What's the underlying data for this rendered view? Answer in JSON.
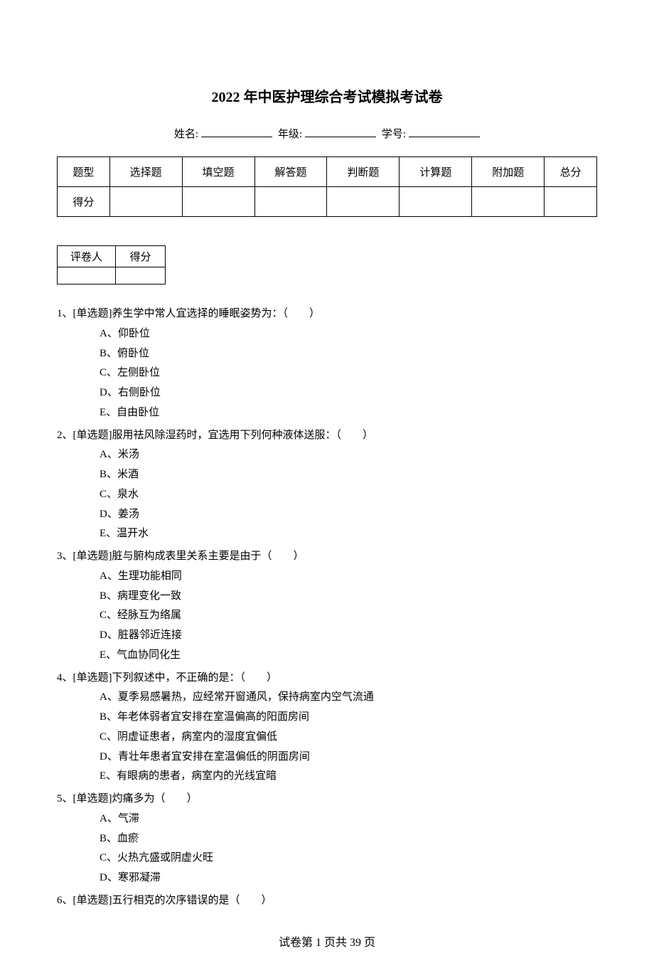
{
  "title": "2022 年中医护理综合考试模拟考试卷",
  "info_labels": {
    "name": "姓名:",
    "grade": "年级:",
    "id": "学号:"
  },
  "score_table": {
    "headers": [
      "题型",
      "选择题",
      "填空题",
      "解答题",
      "判断题",
      "计算题",
      "附加题",
      "总分"
    ],
    "row_label": "得分"
  },
  "grader_table": {
    "col1": "评卷人",
    "col2": "得分"
  },
  "questions": [
    {
      "num": "1、",
      "type": "[单选题]",
      "stem": "养生学中常人宜选择的睡眠姿势为：（　　）",
      "options": [
        "A、仰卧位",
        "B、俯卧位",
        "C、左侧卧位",
        "D、右侧卧位",
        "E、自由卧位"
      ]
    },
    {
      "num": "2、",
      "type": "[单选题]",
      "stem": "服用祛风除湿药时，宜选用下列何种液体送服：（　　）",
      "options": [
        "A、米汤",
        "B、米酒",
        "C、泉水",
        "D、姜汤",
        "E、温开水"
      ]
    },
    {
      "num": "3、",
      "type": "[单选题]",
      "stem": "脏与腑构成表里关系主要是由于（　　）",
      "options": [
        "A、生理功能相同",
        "B、病理变化一致",
        "C、经脉互为络属",
        "D、脏器邻近连接",
        "E、气血协同化生"
      ]
    },
    {
      "num": "4、",
      "type": "[单选题]",
      "stem": "下列叙述中，不正确的是：（　　）",
      "options": [
        "A、夏季易感暑热，应经常开窗通风，保持病室内空气流通",
        "B、年老体弱者宜安排在室温偏高的阳面房间",
        "C、阴虚证患者，病室内的湿度宜偏低",
        "D、青壮年患者宜安排在室温偏低的阴面房间",
        "E、有眼病的患者，病室内的光线宜暗"
      ]
    },
    {
      "num": "5、",
      "type": "[单选题]",
      "stem": "灼痛多为（　　）",
      "options": [
        "A、气滞",
        "B、血瘀",
        "C、火热亢盛或阴虚火旺",
        "D、寒邪凝滞"
      ]
    },
    {
      "num": "6、",
      "type": "[单选题]",
      "stem": "五行相克的次序错误的是（　　）",
      "options": []
    }
  ],
  "footer": "试卷第 1 页共 39 页"
}
